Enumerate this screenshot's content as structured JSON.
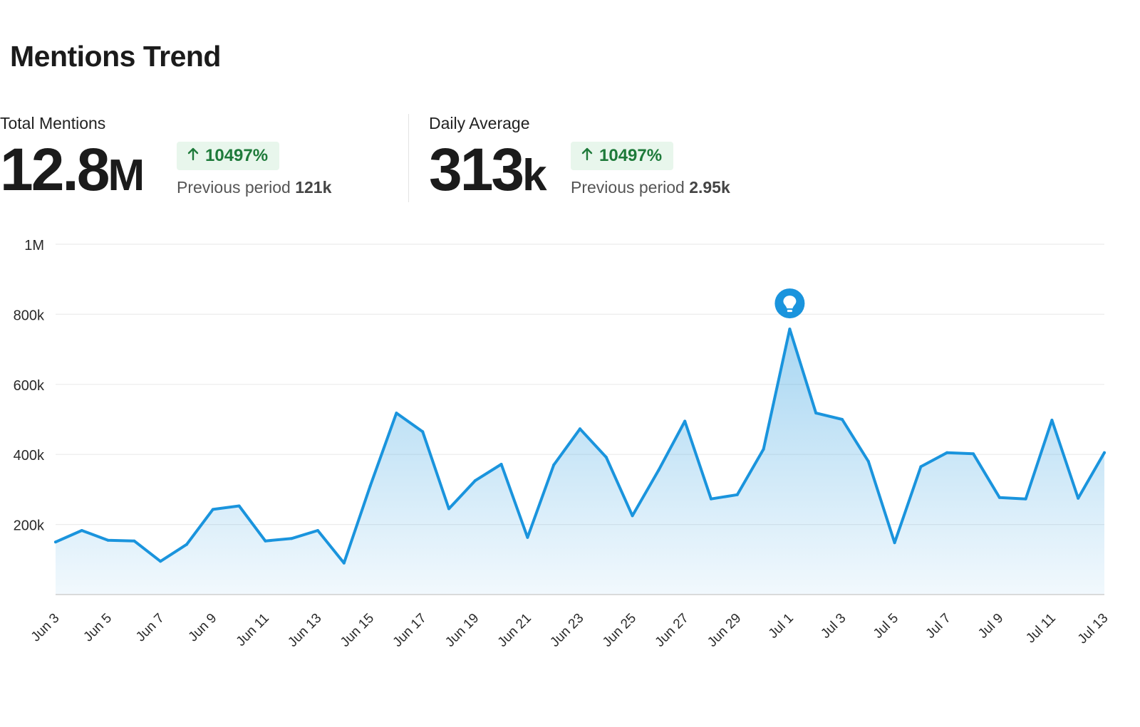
{
  "header": {
    "title": "Mentions Trend"
  },
  "stats": [
    {
      "label": "Total Mentions",
      "value": "12.8",
      "unit": "M",
      "change": "10497%",
      "previous_label": "Previous period",
      "previous_value": "121k"
    },
    {
      "label": "Daily Average",
      "value": "313",
      "unit": "k",
      "change": "10497%",
      "previous_label": "Previous period",
      "previous_value": "2.95k"
    }
  ],
  "colors": {
    "line": "#1a94dd",
    "badge_bg": "#e8f6ec",
    "badge_text": "#1e7a3a",
    "marker": "#1a94dd"
  },
  "marker": {
    "icon": "lightbulb-icon",
    "date": "Jul 1"
  },
  "chart_data": {
    "type": "area",
    "y_ticks": [
      {
        "value": 200000,
        "label": "200k"
      },
      {
        "value": 400000,
        "label": "400k"
      },
      {
        "value": 600000,
        "label": "600k"
      },
      {
        "value": 800000,
        "label": "800k"
      },
      {
        "value": 1000000,
        "label": "1M"
      }
    ],
    "ylim": [
      0,
      1000000
    ],
    "grid": true,
    "x_labels": [
      "Jun 3",
      "Jun 5",
      "Jun 7",
      "Jun 9",
      "Jun 11",
      "Jun 13",
      "Jun 15",
      "Jun 17",
      "Jun 19",
      "Jun 21",
      "Jun 23",
      "Jun 25",
      "Jun 27",
      "Jun 29",
      "Jul 1",
      "Jul 3",
      "Jul 5",
      "Jul 7",
      "Jul 9",
      "Jul 11",
      "Jul 13"
    ],
    "x": [
      "Jun 3",
      "Jun 4",
      "Jun 5",
      "Jun 6",
      "Jun 7",
      "Jun 8",
      "Jun 9",
      "Jun 10",
      "Jun 11",
      "Jun 12",
      "Jun 13",
      "Jun 14",
      "Jun 15",
      "Jun 16",
      "Jun 17",
      "Jun 18",
      "Jun 19",
      "Jun 20",
      "Jun 21",
      "Jun 22",
      "Jun 23",
      "Jun 24",
      "Jun 25",
      "Jun 26",
      "Jun 27",
      "Jun 28",
      "Jun 29",
      "Jun 30",
      "Jul 1",
      "Jul 2",
      "Jul 3",
      "Jul 4",
      "Jul 5",
      "Jul 6",
      "Jul 7",
      "Jul 8",
      "Jul 9",
      "Jul 10",
      "Jul 11",
      "Jul 12",
      "Jul 13"
    ],
    "values": [
      150000,
      183000,
      155000,
      153000,
      95000,
      143000,
      243000,
      253000,
      153000,
      160000,
      183000,
      90000,
      310000,
      518000,
      465000,
      245000,
      325000,
      372000,
      163000,
      370000,
      473000,
      392000,
      225000,
      355000,
      495000,
      273000,
      285000,
      415000,
      758000,
      518000,
      500000,
      380000,
      148000,
      365000,
      405000,
      402000,
      277000,
      273000,
      498000,
      275000,
      405000
    ]
  }
}
